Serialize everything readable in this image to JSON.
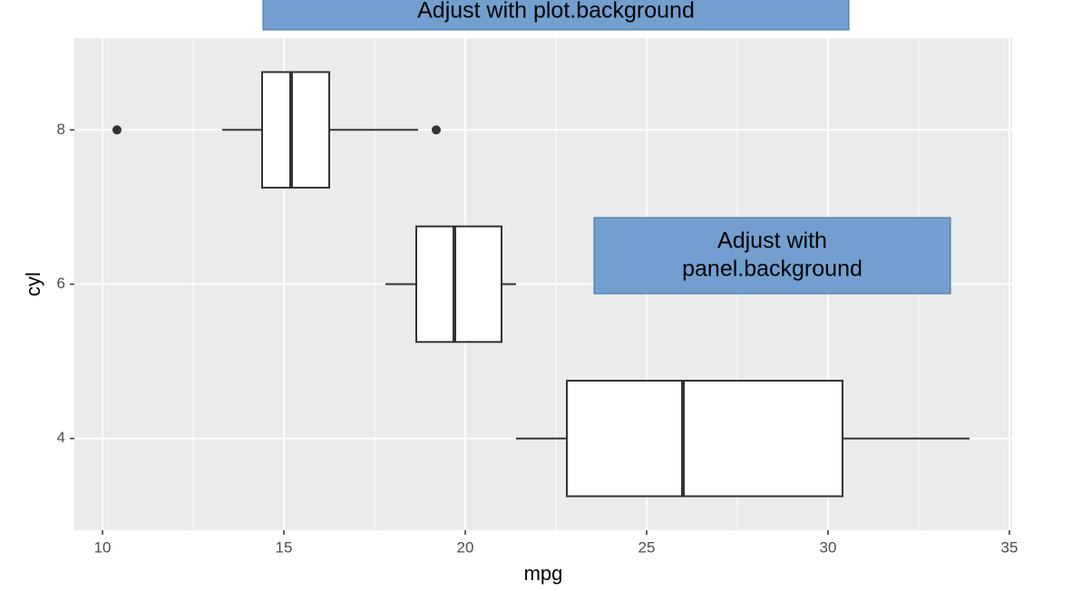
{
  "chart_data": {
    "type": "boxplot",
    "orientation": "horizontal",
    "x_label": "mpg",
    "y_label": "cyl",
    "xlim": [
      9.225,
      35.075
    ],
    "xticks": [
      10,
      15,
      20,
      25,
      30,
      35
    ],
    "x_minor_ticks": [
      12.5,
      17.5,
      22.5,
      27.5,
      32.5
    ],
    "ylim": [
      2.81,
      9.19
    ],
    "yticks": [
      4,
      6,
      8
    ],
    "grid": true,
    "panel_color": "#ebebeb",
    "box_fill": "#ffffff",
    "box_stroke": "#333333",
    "boxes": [
      {
        "y": 4,
        "whislo": 21.4,
        "q1": 22.8,
        "med": 26,
        "q3": 30.4,
        "whishi": 33.9,
        "fliers": []
      },
      {
        "y": 6,
        "whislo": 17.8,
        "q1": 18.65,
        "med": 19.7,
        "q3": 21,
        "whishi": 21.4,
        "fliers": []
      },
      {
        "y": 8,
        "whislo": 13.3,
        "q1": 14.4,
        "med": 15.2,
        "q3": 16.25,
        "whishi": 18.7,
        "fliers": [
          10.4,
          19.2
        ]
      }
    ],
    "annotations": [
      {
        "lines": [
          "Adjust with plot.background"
        ],
        "color": "#729fcf"
      },
      {
        "lines": [
          "Adjust with",
          "panel.background"
        ],
        "color": "#729fcf"
      }
    ]
  }
}
